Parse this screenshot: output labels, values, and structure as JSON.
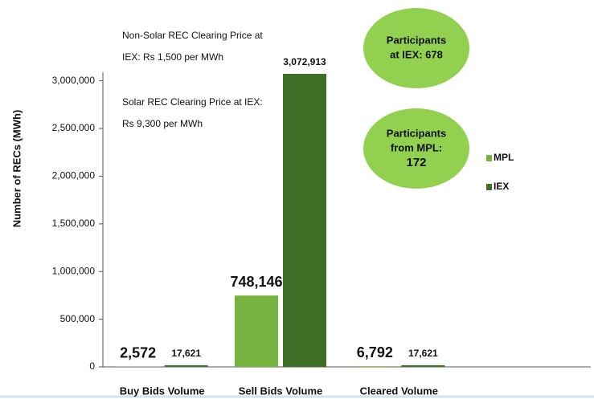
{
  "chart_data": {
    "type": "bar",
    "ylabel": "Number of RECs (MWh)",
    "categories": [
      "Buy Bids Volume",
      "Sell Bids Volume",
      "Cleared Volume"
    ],
    "series": [
      {
        "name": "MPL",
        "color": "#77b43f",
        "values": [
          2572,
          748146,
          6792
        ],
        "value_labels": [
          "2,572",
          "748,146",
          "6,792"
        ]
      },
      {
        "name": "IEX",
        "color": "#3f6e26",
        "values": [
          17621,
          3072913,
          17621
        ],
        "value_labels": [
          "17,621",
          "3,072,913",
          "17,621"
        ]
      }
    ],
    "ylim": [
      0,
      3300000
    ],
    "yticks": [
      0,
      {
        "value": 500000,
        "label": "500,000"
      },
      {
        "value": 1000000,
        "label": "1,000,000"
      },
      {
        "value": 1500000,
        "label": "1,500,000"
      },
      {
        "value": 2000000,
        "label": "2,000,000"
      },
      {
        "value": 2500000,
        "label": "2,500,000"
      },
      {
        "value": 3000000,
        "label": "3,000,000"
      }
    ],
    "legend": "right",
    "annotations": [
      {
        "lines": [
          "Non-Solar REC Clearing Price at",
          "IEX: Rs 1,500 per MWh"
        ]
      },
      {
        "lines": [
          "Solar REC Clearing Price at IEX:",
          "Rs 9,300 per MWh"
        ]
      }
    ],
    "callouts": [
      {
        "lines": [
          "Participants",
          "at IEX: 678"
        ]
      },
      {
        "lines": [
          "Participants",
          "from MPL:",
          "172"
        ]
      }
    ]
  }
}
